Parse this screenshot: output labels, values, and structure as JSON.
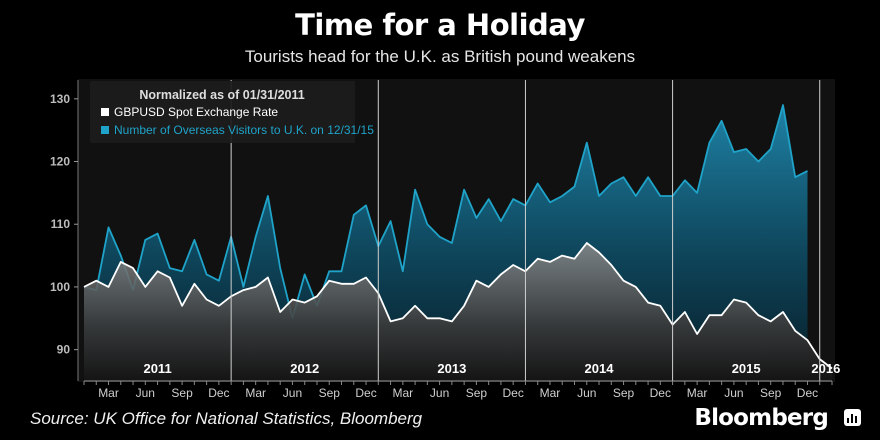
{
  "header": {
    "title": "Time for a Holiday",
    "subtitle": "Tourists head for the U.K. as British pound weakens"
  },
  "footer": {
    "source": "Source: UK Office for National Statistics, Bloomberg",
    "brand": "Bloomberg"
  },
  "chart_data": {
    "type": "area",
    "legend": {
      "title": "Normalized as of 01/31/2011",
      "placement": "top-left"
    },
    "x_start": "2011-01",
    "x_end": "2016-02",
    "ylim": [
      85,
      133
    ],
    "y_ticks": [
      90,
      100,
      110,
      120,
      130
    ],
    "x_month_ticks": [
      "Mar",
      "Jun",
      "Sep",
      "Dec",
      "Mar",
      "Jun",
      "Sep",
      "Dec",
      "Mar",
      "Jun",
      "Sep",
      "Dec",
      "Mar",
      "Jun",
      "Sep",
      "Dec",
      "Mar",
      "Jun",
      "Sep",
      "Dec"
    ],
    "year_labels": [
      "2011",
      "2012",
      "2013",
      "2014",
      "2015",
      "2016"
    ],
    "grid": false,
    "series": [
      {
        "name": "Number of Overseas Visitors to U.K. on 12/31/15",
        "color": "#1fa3c9",
        "x": [
          "2011-01",
          "2011-02",
          "2011-03",
          "2011-04",
          "2011-05",
          "2011-06",
          "2011-07",
          "2011-08",
          "2011-09",
          "2011-10",
          "2011-11",
          "2011-12",
          "2012-01",
          "2012-02",
          "2012-03",
          "2012-04",
          "2012-05",
          "2012-06",
          "2012-07",
          "2012-08",
          "2012-09",
          "2012-10",
          "2012-11",
          "2012-12",
          "2013-01",
          "2013-02",
          "2013-03",
          "2013-04",
          "2013-05",
          "2013-06",
          "2013-07",
          "2013-08",
          "2013-09",
          "2013-10",
          "2013-11",
          "2013-12",
          "2014-01",
          "2014-02",
          "2014-03",
          "2014-04",
          "2014-05",
          "2014-06",
          "2014-07",
          "2014-08",
          "2014-09",
          "2014-10",
          "2014-11",
          "2014-12",
          "2015-01",
          "2015-02",
          "2015-03",
          "2015-04",
          "2015-05",
          "2015-06",
          "2015-07",
          "2015-08",
          "2015-09",
          "2015-10",
          "2015-11",
          "2015-12"
        ],
        "values": [
          100,
          99.5,
          109.5,
          105,
          99.5,
          107.5,
          108.5,
          103,
          102.5,
          107.5,
          102,
          101,
          108,
          100,
          108,
          114.5,
          103,
          95,
          102,
          97,
          102.5,
          102.5,
          111.5,
          113,
          106.5,
          110.5,
          102.5,
          115.5,
          110,
          108,
          107,
          115.5,
          111,
          114,
          110.5,
          114,
          113,
          116.5,
          113.5,
          114.5,
          116,
          123,
          114.5,
          116.5,
          117.5,
          114.5,
          117.5,
          114.5,
          114.5,
          117,
          115,
          123,
          126.5,
          121.5,
          122,
          120,
          122,
          129,
          117.5,
          118.5
        ]
      },
      {
        "name": "GBPUSD Spot Exchange Rate",
        "color": "#ffffff",
        "x": [
          "2011-01",
          "2011-02",
          "2011-03",
          "2011-04",
          "2011-05",
          "2011-06",
          "2011-07",
          "2011-08",
          "2011-09",
          "2011-10",
          "2011-11",
          "2011-12",
          "2012-01",
          "2012-02",
          "2012-03",
          "2012-04",
          "2012-05",
          "2012-06",
          "2012-07",
          "2012-08",
          "2012-09",
          "2012-10",
          "2012-11",
          "2012-12",
          "2013-01",
          "2013-02",
          "2013-03",
          "2013-04",
          "2013-05",
          "2013-06",
          "2013-07",
          "2013-08",
          "2013-09",
          "2013-10",
          "2013-11",
          "2013-12",
          "2014-01",
          "2014-02",
          "2014-03",
          "2014-04",
          "2014-05",
          "2014-06",
          "2014-07",
          "2014-08",
          "2014-09",
          "2014-10",
          "2014-11",
          "2014-12",
          "2015-01",
          "2015-02",
          "2015-03",
          "2015-04",
          "2015-05",
          "2015-06",
          "2015-07",
          "2015-08",
          "2015-09",
          "2015-10",
          "2015-11",
          "2015-12",
          "2016-01",
          "2016-02"
        ],
        "values": [
          100,
          101,
          100,
          104,
          103,
          100,
          102.5,
          101.5,
          97,
          100.5,
          98,
          97,
          98.5,
          99.5,
          100,
          101.5,
          96,
          98,
          97.5,
          98.5,
          101,
          100.5,
          100.5,
          101.5,
          99,
          94.5,
          95,
          97,
          95,
          95,
          94.5,
          97,
          101,
          100,
          102,
          103.5,
          102.5,
          104.5,
          104,
          105,
          104.5,
          107,
          105.5,
          103.5,
          101,
          100,
          97.5,
          97,
          94,
          96,
          92.5,
          95.5,
          95.5,
          98,
          97.5,
          95.5,
          94.5,
          96,
          93,
          91.5,
          88.5,
          87
        ]
      }
    ]
  }
}
